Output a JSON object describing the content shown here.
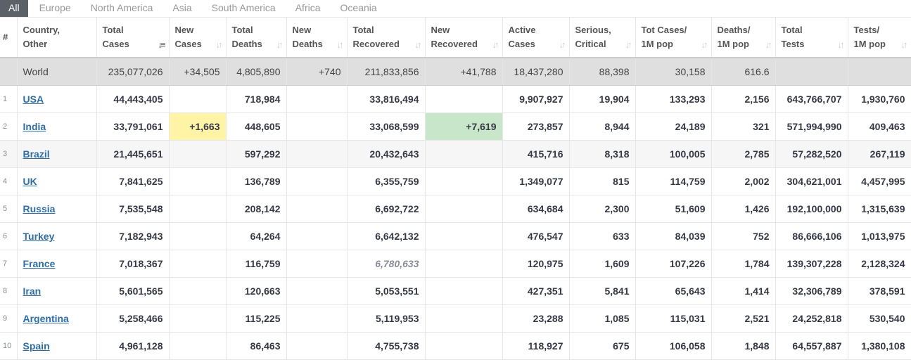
{
  "tabs": [
    "All",
    "Europe",
    "North America",
    "Asia",
    "South America",
    "Africa",
    "Oceania"
  ],
  "columns": [
    [
      "#",
      ""
    ],
    [
      "Country,",
      "Other"
    ],
    [
      "Total",
      "Cases"
    ],
    [
      "New",
      "Cases"
    ],
    [
      "Total",
      "Deaths"
    ],
    [
      "New",
      "Deaths"
    ],
    [
      "Total",
      "Recovered"
    ],
    [
      "New",
      "Recovered"
    ],
    [
      "Active",
      "Cases"
    ],
    [
      "Serious,",
      "Critical"
    ],
    [
      "Tot Cases/",
      "1M pop"
    ],
    [
      "Deaths/",
      "1M pop"
    ],
    [
      "Total",
      "Tests"
    ],
    [
      "Tests/",
      "1M pop"
    ]
  ],
  "world": [
    "",
    "World",
    "235,077,026",
    "+34,505",
    "4,805,890",
    "+740",
    "211,833,856",
    "+41,788",
    "18,437,280",
    "88,398",
    "30,158",
    "616.6",
    "",
    ""
  ],
  "rows": [
    [
      "1",
      "USA",
      "44,443,405",
      "",
      "718,984",
      "",
      "33,816,494",
      "",
      "9,907,927",
      "19,904",
      "133,293",
      "2,156",
      "643,766,707",
      "1,930,760"
    ],
    [
      "2",
      "India",
      "33,791,061",
      "+1,663",
      "448,605",
      "",
      "33,068,599",
      "+7,619",
      "273,857",
      "8,944",
      "24,189",
      "321",
      "571,994,990",
      "409,463"
    ],
    [
      "3",
      "Brazil",
      "21,445,651",
      "",
      "597,292",
      "",
      "20,432,643",
      "",
      "415,716",
      "8,318",
      "100,005",
      "2,785",
      "57,282,520",
      "267,119"
    ],
    [
      "4",
      "UK",
      "7,841,625",
      "",
      "136,789",
      "",
      "6,355,759",
      "",
      "1,349,077",
      "815",
      "114,759",
      "2,002",
      "304,621,001",
      "4,457,995"
    ],
    [
      "5",
      "Russia",
      "7,535,548",
      "",
      "208,142",
      "",
      "6,692,722",
      "",
      "634,684",
      "2,300",
      "51,609",
      "1,426",
      "192,100,000",
      "1,315,639"
    ],
    [
      "6",
      "Turkey",
      "7,182,943",
      "",
      "64,264",
      "",
      "6,642,132",
      "",
      "476,547",
      "633",
      "84,039",
      "752",
      "86,666,106",
      "1,013,975"
    ],
    [
      "7",
      "France",
      "7,018,367",
      "",
      "116,759",
      "",
      "6,780,633",
      "",
      "120,975",
      "1,609",
      "107,226",
      "1,784",
      "139,307,228",
      "2,128,324"
    ],
    [
      "8",
      "Iran",
      "5,601,565",
      "",
      "120,663",
      "",
      "5,053,551",
      "",
      "427,351",
      "5,841",
      "65,643",
      "1,414",
      "32,306,789",
      "378,591"
    ],
    [
      "9",
      "Argentina",
      "5,258,466",
      "",
      "115,225",
      "",
      "5,119,953",
      "",
      "23,288",
      "1,085",
      "115,031",
      "2,521",
      "24,252,818",
      "530,540"
    ],
    [
      "10",
      "Spain",
      "4,961,128",
      "",
      "86,463",
      "",
      "4,755,738",
      "",
      "118,927",
      "675",
      "106,058",
      "1,848",
      "64,557,887",
      "1,380,108"
    ]
  ],
  "colors": {
    "new_cases_highlight": "#fff3a6",
    "new_recovered_highlight": "#c8e6c9",
    "active_tab": "#5a6169",
    "link": "#2f6ea5"
  }
}
